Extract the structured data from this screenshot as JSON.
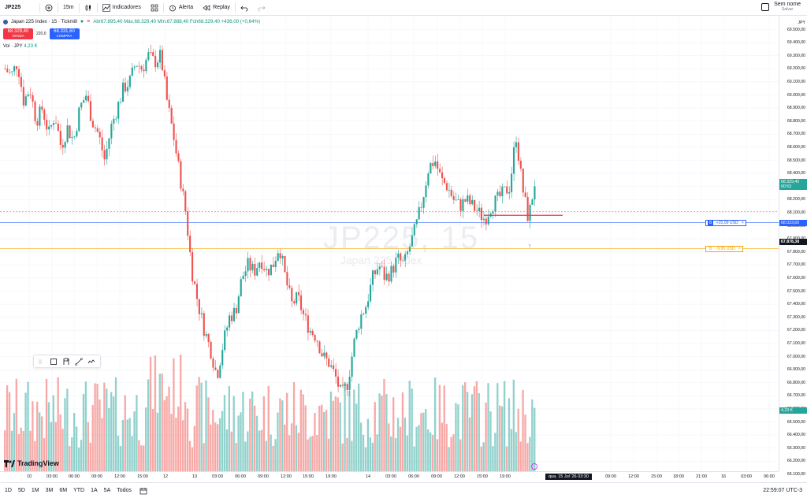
{
  "toolbar": {
    "symbol": "JP225",
    "interval": "15m",
    "indicators_label": "Indicadores",
    "alert_label": "Alerta",
    "replay_label": "Replay",
    "workspace_title": "Sem nome",
    "workspace_sub": "Salvar"
  },
  "legend": {
    "title": "Japan 225 Index · 15 · Tickmill",
    "ohlc": "Abr67.895,40  Máx.68.329,40  Mín.67.888,40  Fch68.329,40 +436,00 (+0,64%)",
    "sell_price": "68.329,40",
    "sell_label": "VENDA",
    "spread": "220,0",
    "buy_price": "68.331,60",
    "buy_label": "COMPRA",
    "vol_label": "Vol · JPY",
    "vol_value": "4,23 K"
  },
  "watermark": {
    "symbol": "JP225, 15",
    "name": "Japan 225 Index"
  },
  "price_axis": {
    "currency": "JPY",
    "labels": [
      "69.500,00",
      "69.400,00",
      "69.300,00",
      "69.200,00",
      "69.100,00",
      "69.000,00",
      "68.900,00",
      "68.800,00",
      "68.700,00",
      "68.600,00",
      "68.500,00",
      "68.400,00",
      "68.300,00",
      "68.200,00",
      "68.100,00",
      "68.000,00",
      "67.900,00",
      "67.800,00",
      "67.700,00",
      "67.600,00",
      "67.500,00",
      "67.400,00",
      "67.300,00",
      "67.200,00",
      "67.100,00",
      "67.000,00",
      "66.900,00",
      "66.800,00",
      "66.700,00",
      "66.600,00",
      "66.500,00",
      "66.400,00",
      "66.300,00",
      "66.200,00",
      "66.100,00"
    ],
    "last_price": "68.329,40",
    "countdown": "00:53",
    "long_price": "68.023,60",
    "cursor_price": "67.878,38",
    "vol_tag": "4,23 K"
  },
  "positions": [
    {
      "side": "B",
      "pnl": "+15,09 USD",
      "color": "#2962ff"
    },
    {
      "side": "B",
      "pnl": "-9,95 USD",
      "color": "#f7a600"
    }
  ],
  "time_axis": {
    "labels": [
      "10",
      "03:00",
      "06:00",
      "09:00",
      "12:00",
      "15:00",
      "12",
      "13",
      "03:00",
      "06:00",
      "09:00",
      "12:00",
      "15:00",
      "19:00",
      "14",
      "03:00",
      "06:00",
      "09:00",
      "12:00",
      "15:00",
      "19:00",
      "09:00",
      "12:00",
      "15:00",
      "18:00",
      "21:00",
      "16",
      "03:00",
      "06:00"
    ],
    "cursor_time": "qua. 15 Jul '26   03:30"
  },
  "bottom": {
    "ranges": [
      "1D",
      "5D",
      "1M",
      "3M",
      "6M",
      "YTD",
      "1A",
      "5A",
      "Todos"
    ],
    "clock": "22:59:07 UTC-3"
  },
  "brand": "TradingView",
  "colors": {
    "up": "#26a69a",
    "down": "#ef5350",
    "accent": "#2962ff"
  },
  "chart_data": {
    "type": "candlestick",
    "ylim": [
      66100,
      69550
    ],
    "close_series": [
      69200,
      69150,
      69250,
      68950,
      69050,
      68800,
      68900,
      68700,
      68850,
      68600,
      68750,
      68650,
      68900,
      69000,
      68800,
      68700,
      68500,
      68750,
      68900,
      69050,
      69100,
      69250,
      69200,
      69300,
      69250,
      69300,
      68950,
      68700,
      68400,
      68100,
      67650,
      67400,
      67200,
      67050,
      66850,
      67100,
      67300,
      67350,
      67600,
      67700,
      67650,
      67750,
      67650,
      67700,
      67850,
      67600,
      67400,
      67450,
      67300,
      67200,
      67150,
      67000,
      66950,
      66850,
      66700,
      66800,
      67100,
      67300,
      67400,
      67600,
      67700,
      67600,
      67650,
      67750,
      67700,
      67850,
      68000,
      68200,
      68450,
      68500,
      68350,
      68300,
      68200,
      68150,
      68200,
      68150,
      68100,
      68050,
      68150,
      68200,
      68250,
      68300,
      68700,
      68300,
      68050,
      68329
    ]
  }
}
